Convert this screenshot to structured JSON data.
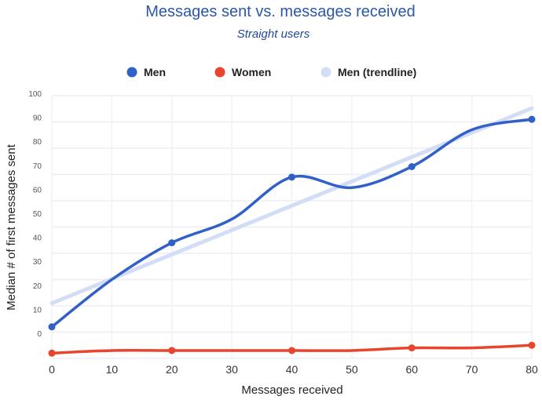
{
  "chart_data": {
    "type": "line",
    "title": "Messages sent vs. messages received",
    "subtitle": "Straight users",
    "xlabel": "Messages received",
    "ylabel": "Median # of first messages sent",
    "xlim": [
      0,
      80
    ],
    "ylim": [
      0,
      100
    ],
    "x_ticks": [
      "0",
      "10",
      "20",
      "30",
      "40",
      "50",
      "60",
      "70",
      "80"
    ],
    "y_ticks": [
      "0",
      "10",
      "20",
      "30",
      "40",
      "50",
      "60",
      "70",
      "80",
      "90",
      "100"
    ],
    "grid": true,
    "legend_position": "top",
    "x": [
      0,
      10,
      20,
      30,
      40,
      50,
      60,
      70,
      80
    ],
    "series": [
      {
        "name": "Men",
        "color": "#3060c8",
        "values": [
          12,
          30,
          44,
          53,
          69,
          65,
          73,
          87,
          91
        ],
        "marker_x": [
          0,
          20,
          40,
          60,
          80
        ]
      },
      {
        "name": "Women",
        "color": "#e8442e",
        "values": [
          2,
          3,
          3,
          3,
          3,
          3,
          4,
          4,
          5
        ],
        "marker_x": [
          0,
          20,
          40,
          60,
          80
        ]
      },
      {
        "name": "Men (trendline)",
        "color": "#d3def6",
        "values": [
          21,
          30.3,
          39.6,
          48.9,
          58.1,
          67.4,
          76.7,
          86,
          95.2
        ]
      }
    ]
  }
}
